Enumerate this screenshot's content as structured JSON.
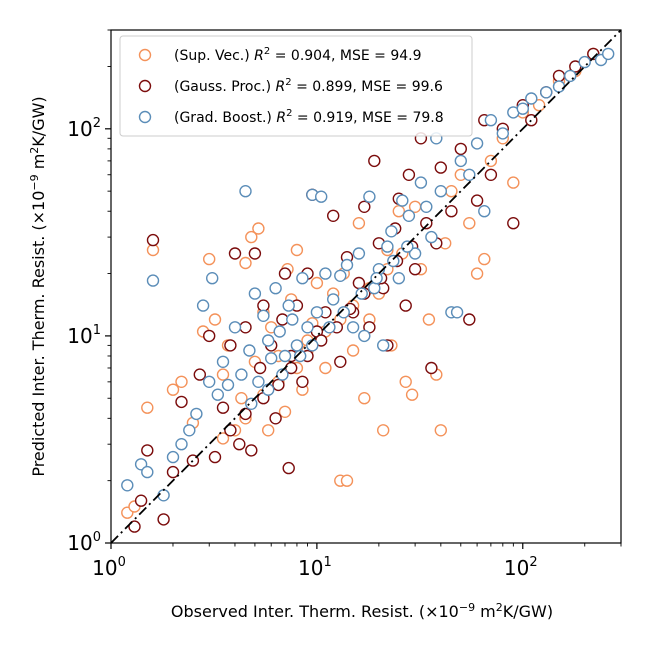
{
  "chart_data": {
    "type": "scatter",
    "title": "",
    "xlabel": {
      "main": "Observed Inter. Therm. Resist. (×10",
      "exp": "−9",
      "mid": " m",
      "exp2": "2",
      "tail": "K/GW)"
    },
    "ylabel": {
      "main": "Predicted Inter. Therm. Resist. (×10",
      "exp": "−9",
      "mid": " m",
      "exp2": "2",
      "tail": "K/GW)"
    },
    "x_scale": "log",
    "y_scale": "log",
    "xlim": [
      1,
      300
    ],
    "ylim": [
      1,
      300
    ],
    "x_ticks": [
      {
        "base": "10",
        "exp": "0",
        "value": 1
      },
      {
        "base": "10",
        "exp": "1",
        "value": 10
      },
      {
        "base": "10",
        "exp": "2",
        "value": 100
      }
    ],
    "y_ticks": [
      {
        "base": "10",
        "exp": "0",
        "value": 1
      },
      {
        "base": "10",
        "exp": "1",
        "value": 10
      },
      {
        "base": "10",
        "exp": "2",
        "value": 100
      }
    ],
    "grid": false,
    "legend_position": "top-left",
    "reference_line": {
      "style": "dash-dot",
      "color": "#000000",
      "from": [
        1,
        1
      ],
      "to": [
        300,
        300
      ]
    },
    "series": [
      {
        "name": "(Sup. Vec.) R² = 0.904, MSE = 94.9",
        "legend": {
          "prefix": "(Sup. Vec.) ",
          "r": "R",
          "sup": "2",
          "rest": " = 0.904, MSE = 94.9"
        },
        "color": "#f4925a",
        "points": [
          [
            1.2,
            1.4
          ],
          [
            1.3,
            1.5
          ],
          [
            1.5,
            4.5
          ],
          [
            1.6,
            26
          ],
          [
            2.0,
            5.5
          ],
          [
            2.2,
            6.0
          ],
          [
            2.5,
            3.8
          ],
          [
            2.8,
            10.5
          ],
          [
            3.0,
            23.5
          ],
          [
            3.2,
            12.0
          ],
          [
            3.5,
            6.5
          ],
          [
            3.7,
            9.0
          ],
          [
            4.0,
            3.5
          ],
          [
            4.3,
            5.0
          ],
          [
            4.5,
            22.5
          ],
          [
            4.8,
            30.0
          ],
          [
            5.0,
            7.5
          ],
          [
            5.2,
            33.0
          ],
          [
            5.5,
            13.0
          ],
          [
            5.8,
            3.5
          ],
          [
            6.0,
            11.0
          ],
          [
            6.5,
            8.0
          ],
          [
            7.0,
            4.3
          ],
          [
            7.2,
            21.0
          ],
          [
            7.5,
            15.0
          ],
          [
            8.0,
            26.0
          ],
          [
            8.5,
            5.5
          ],
          [
            9.0,
            9.5
          ],
          [
            9.5,
            11.5
          ],
          [
            10.0,
            18.0
          ],
          [
            11.0,
            7.0
          ],
          [
            12.0,
            16.0
          ],
          [
            13.0,
            2.0
          ],
          [
            13.5,
            20.0
          ],
          [
            14.0,
            2.0
          ],
          [
            15.0,
            8.5
          ],
          [
            16.0,
            35.0
          ],
          [
            17.0,
            5.0
          ],
          [
            18.0,
            12.0
          ],
          [
            20.0,
            16.0
          ],
          [
            21.0,
            3.5
          ],
          [
            22.0,
            26.0
          ],
          [
            23.0,
            9.0
          ],
          [
            25.0,
            40.0
          ],
          [
            27.0,
            6.0
          ],
          [
            29.0,
            5.2
          ],
          [
            30.0,
            42.0
          ],
          [
            32.0,
            21.0
          ],
          [
            35.0,
            12.0
          ],
          [
            38.0,
            6.5
          ],
          [
            40.0,
            3.5
          ],
          [
            42.0,
            28.0
          ],
          [
            45.0,
            50.0
          ],
          [
            50.0,
            60.0
          ],
          [
            55.0,
            35.0
          ],
          [
            60.0,
            20.0
          ],
          [
            65.0,
            23.5
          ],
          [
            70.0,
            70.0
          ],
          [
            80.0,
            90.0
          ],
          [
            90.0,
            55.0
          ],
          [
            100.0,
            120.0
          ],
          [
            120.0,
            130.0
          ],
          [
            150.0,
            170.0
          ],
          [
            180.0,
            190.0
          ],
          [
            220.0,
            230.0
          ],
          [
            8.0,
            7.0
          ],
          [
            9.0,
            8.5
          ],
          [
            11.0,
            10.5
          ],
          [
            13.0,
            12.0
          ],
          [
            15.0,
            14.0
          ],
          [
            18.0,
            17.0
          ],
          [
            22.0,
            21.0
          ],
          [
            26.0,
            25.0
          ],
          [
            6.5,
            6.0
          ],
          [
            5.5,
            5.2
          ],
          [
            4.5,
            4.0
          ],
          [
            3.5,
            3.2
          ]
        ]
      },
      {
        "name": "(Gauss. Proc.) R² = 0.899, MSE = 99.6",
        "legend": {
          "prefix": "(Gauss. Proc.) ",
          "r": "R",
          "sup": "2",
          "rest": " = 0.899, MSE = 99.6"
        },
        "color": "#7b0c0c",
        "points": [
          [
            1.3,
            1.2
          ],
          [
            1.4,
            1.6
          ],
          [
            1.5,
            2.8
          ],
          [
            1.6,
            29.0
          ],
          [
            1.8,
            1.3
          ],
          [
            2.0,
            2.2
          ],
          [
            2.2,
            4.8
          ],
          [
            2.5,
            2.5
          ],
          [
            2.7,
            6.5
          ],
          [
            3.0,
            10.0
          ],
          [
            3.2,
            2.6
          ],
          [
            3.5,
            4.5
          ],
          [
            3.8,
            9.0
          ],
          [
            4.0,
            25.0
          ],
          [
            4.2,
            3.0
          ],
          [
            4.5,
            11.0
          ],
          [
            4.8,
            2.8
          ],
          [
            5.0,
            25.0
          ],
          [
            5.3,
            7.0
          ],
          [
            5.5,
            14.0
          ],
          [
            6.0,
            9.0
          ],
          [
            6.3,
            4.0
          ],
          [
            6.8,
            12.0
          ],
          [
            7.0,
            20.0
          ],
          [
            7.3,
            2.3
          ],
          [
            7.5,
            8.0
          ],
          [
            8.0,
            14.0
          ],
          [
            8.5,
            6.0
          ],
          [
            9.0,
            20.0
          ],
          [
            9.5,
            48.0
          ],
          [
            10.0,
            10.5
          ],
          [
            11.0,
            13.0
          ],
          [
            12.0,
            38.0
          ],
          [
            13.0,
            7.5
          ],
          [
            14.0,
            24.0
          ],
          [
            15.0,
            13.0
          ],
          [
            16.0,
            18.0
          ],
          [
            17.0,
            42.0
          ],
          [
            18.0,
            11.0
          ],
          [
            19.0,
            70.0
          ],
          [
            20.0,
            28.0
          ],
          [
            21.0,
            17.0
          ],
          [
            22.0,
            9.0
          ],
          [
            24.0,
            33.0
          ],
          [
            25.0,
            46.0
          ],
          [
            27.0,
            14.0
          ],
          [
            28.0,
            60.0
          ],
          [
            30.0,
            21.0
          ],
          [
            32.0,
            90.0
          ],
          [
            34.0,
            35.0
          ],
          [
            36.0,
            7.0
          ],
          [
            38.0,
            28.0
          ],
          [
            40.0,
            65.0
          ],
          [
            45.0,
            40.0
          ],
          [
            50.0,
            80.0
          ],
          [
            55.0,
            12.0
          ],
          [
            60.0,
            45.0
          ],
          [
            65.0,
            110.0
          ],
          [
            70.0,
            60.0
          ],
          [
            80.0,
            100.0
          ],
          [
            90.0,
            35.0
          ],
          [
            100.0,
            130.0
          ],
          [
            110.0,
            110.0
          ],
          [
            130.0,
            150.0
          ],
          [
            150.0,
            180.0
          ],
          [
            180.0,
            200.0
          ],
          [
            220.0,
            230.0
          ],
          [
            9.0,
            8.0
          ],
          [
            10.5,
            9.5
          ],
          [
            12.5,
            11.0
          ],
          [
            14.5,
            13.5
          ],
          [
            17.0,
            16.0
          ],
          [
            20.5,
            19.0
          ],
          [
            24.5,
            23.0
          ],
          [
            29.0,
            27.0
          ],
          [
            5.5,
            5.0
          ],
          [
            4.5,
            4.2
          ],
          [
            3.8,
            3.5
          ],
          [
            7.5,
            7.0
          ],
          [
            6.5,
            5.8
          ]
        ]
      },
      {
        "name": "(Grad. Boost.) R² = 0.919, MSE = 79.8",
        "legend": {
          "prefix": "(Grad. Boost.) ",
          "r": "R",
          "sup": "2",
          "rest": " = 0.919, MSE = 79.8"
        },
        "color": "#5b8db8",
        "points": [
          [
            1.2,
            1.9
          ],
          [
            1.4,
            2.4
          ],
          [
            1.5,
            2.2
          ],
          [
            1.6,
            18.5
          ],
          [
            1.8,
            1.7
          ],
          [
            2.0,
            2.6
          ],
          [
            2.2,
            3.0
          ],
          [
            2.4,
            3.5
          ],
          [
            2.6,
            4.2
          ],
          [
            2.8,
            14.0
          ],
          [
            3.0,
            6.0
          ],
          [
            3.1,
            19.0
          ],
          [
            3.3,
            5.2
          ],
          [
            3.5,
            7.5
          ],
          [
            3.7,
            5.8
          ],
          [
            4.0,
            11.0
          ],
          [
            4.3,
            6.5
          ],
          [
            4.5,
            50.0
          ],
          [
            4.7,
            8.5
          ],
          [
            5.0,
            16.0
          ],
          [
            5.2,
            6.0
          ],
          [
            5.5,
            12.5
          ],
          [
            5.8,
            9.5
          ],
          [
            6.0,
            7.8
          ],
          [
            6.3,
            17.0
          ],
          [
            6.6,
            10.5
          ],
          [
            7.0,
            8.0
          ],
          [
            7.3,
            14.0
          ],
          [
            7.6,
            12.0
          ],
          [
            8.0,
            9.0
          ],
          [
            8.5,
            19.0
          ],
          [
            9.0,
            11.0
          ],
          [
            9.5,
            48.0
          ],
          [
            10.0,
            13.0
          ],
          [
            10.5,
            47.0
          ],
          [
            11.0,
            20.0
          ],
          [
            12.0,
            15.0
          ],
          [
            13.0,
            19.5
          ],
          [
            14.0,
            22.0
          ],
          [
            15.0,
            11.0
          ],
          [
            16.0,
            25.0
          ],
          [
            17.0,
            10.0
          ],
          [
            18.0,
            47.0
          ],
          [
            19.0,
            17.0
          ],
          [
            20.0,
            21.0
          ],
          [
            21.0,
            9.0
          ],
          [
            22.0,
            27.0
          ],
          [
            23.0,
            32.0
          ],
          [
            25.0,
            19.0
          ],
          [
            26.0,
            45.0
          ],
          [
            28.0,
            38.0
          ],
          [
            30.0,
            25.0
          ],
          [
            32.0,
            55.0
          ],
          [
            34.0,
            42.0
          ],
          [
            36.0,
            30.0
          ],
          [
            38.0,
            90.0
          ],
          [
            40.0,
            50.0
          ],
          [
            45.0,
            13.0
          ],
          [
            48.0,
            13.0
          ],
          [
            50.0,
            70.0
          ],
          [
            55.0,
            60.0
          ],
          [
            60.0,
            85.0
          ],
          [
            65.0,
            40.0
          ],
          [
            70.0,
            110.0
          ],
          [
            80.0,
            95.0
          ],
          [
            90.0,
            120.0
          ],
          [
            100.0,
            125.0
          ],
          [
            110.0,
            140.0
          ],
          [
            130.0,
            150.0
          ],
          [
            150.0,
            160.0
          ],
          [
            170.0,
            180.0
          ],
          [
            200.0,
            210.0
          ],
          [
            240.0,
            215.0
          ],
          [
            260.0,
            230.0
          ],
          [
            9.5,
            9.0
          ],
          [
            11.5,
            11.0
          ],
          [
            13.5,
            13.0
          ],
          [
            16.5,
            16.0
          ],
          [
            19.5,
            19.0
          ],
          [
            23.5,
            23.0
          ],
          [
            27.5,
            27.0
          ],
          [
            6.8,
            6.5
          ],
          [
            5.8,
            5.5
          ],
          [
            4.8,
            4.7
          ],
          [
            8.3,
            8.0
          ]
        ]
      }
    ]
  }
}
